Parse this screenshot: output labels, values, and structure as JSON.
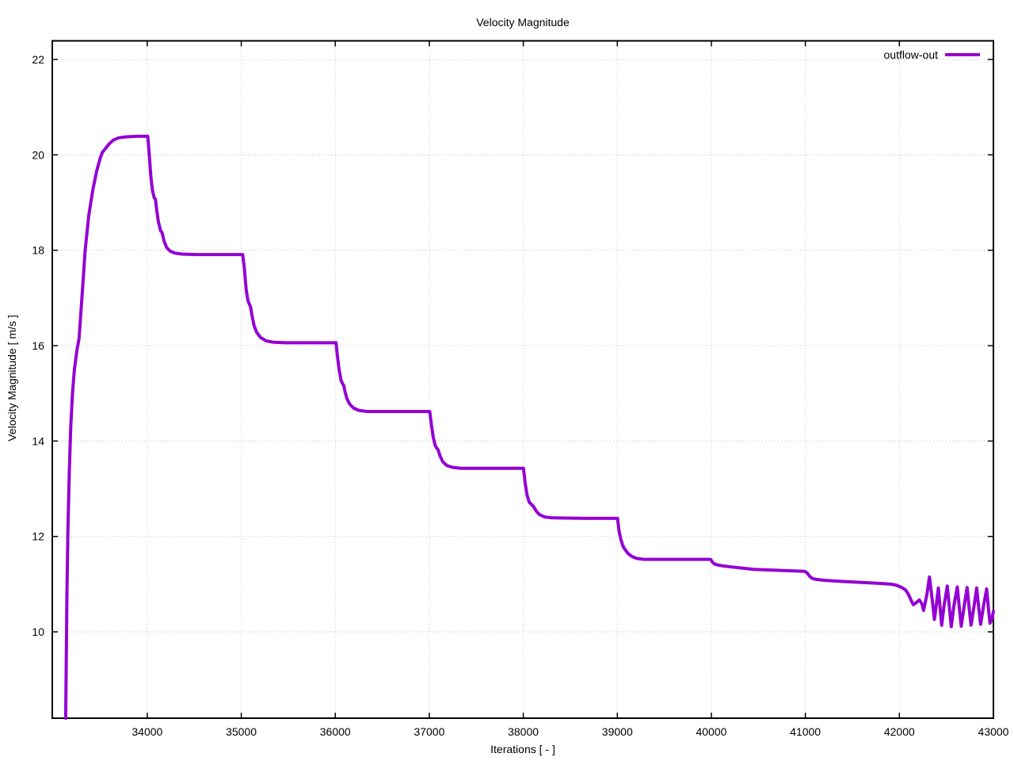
{
  "chart_data": {
    "type": "line",
    "title": "Velocity Magnitude",
    "xlabel": "Iterations [ - ]",
    "ylabel": "Velocity Magnitude [ m/s ]",
    "xlim": [
      32990,
      43000
    ],
    "ylim": [
      8.19,
      22.39
    ],
    "xticks": [
      34000,
      35000,
      36000,
      37000,
      38000,
      39000,
      40000,
      41000,
      42000,
      43000
    ],
    "yticks": [
      10,
      12,
      14,
      16,
      18,
      20,
      22
    ],
    "grid": true,
    "grid_style": "dotted",
    "grid_color": "#bdbdbd",
    "border_color": "#000000",
    "background_color": "#ffffff",
    "legend_position": "top-right-inside",
    "series": [
      {
        "name": "outflow-out",
        "color": "#9400d3",
        "points": [
          [
            33132,
            8.19
          ],
          [
            33138,
            9.3
          ],
          [
            33146,
            10.8
          ],
          [
            33156,
            12.1
          ],
          [
            33170,
            13.3
          ],
          [
            33186,
            14.3
          ],
          [
            33205,
            15.0
          ],
          [
            33225,
            15.5
          ],
          [
            33252,
            15.9
          ],
          [
            33275,
            16.15
          ],
          [
            33305,
            17.0
          ],
          [
            33340,
            18.0
          ],
          [
            33378,
            18.72
          ],
          [
            33420,
            19.25
          ],
          [
            33462,
            19.66
          ],
          [
            33500,
            19.93
          ],
          [
            33522,
            20.05
          ],
          [
            33550,
            20.12
          ],
          [
            33590,
            20.22
          ],
          [
            33640,
            20.31
          ],
          [
            33700,
            20.36
          ],
          [
            33790,
            20.38
          ],
          [
            33900,
            20.39
          ],
          [
            34005,
            20.39
          ],
          [
            34018,
            20.1
          ],
          [
            34038,
            19.55
          ],
          [
            34056,
            19.25
          ],
          [
            34066,
            19.17
          ],
          [
            34074,
            19.1
          ],
          [
            34088,
            19.07
          ],
          [
            34098,
            18.88
          ],
          [
            34118,
            18.6
          ],
          [
            34142,
            18.41
          ],
          [
            34158,
            18.37
          ],
          [
            34178,
            18.2
          ],
          [
            34205,
            18.06
          ],
          [
            34245,
            17.98
          ],
          [
            34295,
            17.94
          ],
          [
            34365,
            17.92
          ],
          [
            34520,
            17.91
          ],
          [
            34800,
            17.91
          ],
          [
            35015,
            17.91
          ],
          [
            35032,
            17.65
          ],
          [
            35052,
            17.18
          ],
          [
            35070,
            16.95
          ],
          [
            35084,
            16.88
          ],
          [
            35098,
            16.82
          ],
          [
            35114,
            16.63
          ],
          [
            35138,
            16.41
          ],
          [
            35164,
            16.28
          ],
          [
            35205,
            16.17
          ],
          [
            35265,
            16.1
          ],
          [
            35345,
            16.07
          ],
          [
            35470,
            16.06
          ],
          [
            35750,
            16.06
          ],
          [
            36008,
            16.06
          ],
          [
            36022,
            15.8
          ],
          [
            36042,
            15.48
          ],
          [
            36062,
            15.27
          ],
          [
            36078,
            15.2
          ],
          [
            36092,
            15.16
          ],
          [
            36104,
            15.03
          ],
          [
            36124,
            14.89
          ],
          [
            36155,
            14.77
          ],
          [
            36195,
            14.69
          ],
          [
            36255,
            14.64
          ],
          [
            36345,
            14.62
          ],
          [
            36650,
            14.62
          ],
          [
            37005,
            14.62
          ],
          [
            37022,
            14.35
          ],
          [
            37042,
            14.08
          ],
          [
            37062,
            13.91
          ],
          [
            37080,
            13.85
          ],
          [
            37095,
            13.81
          ],
          [
            37112,
            13.7
          ],
          [
            37142,
            13.57
          ],
          [
            37185,
            13.49
          ],
          [
            37245,
            13.45
          ],
          [
            37335,
            13.43
          ],
          [
            37650,
            13.43
          ],
          [
            38002,
            13.43
          ],
          [
            38018,
            13.15
          ],
          [
            38038,
            12.88
          ],
          [
            38062,
            12.72
          ],
          [
            38088,
            12.67
          ],
          [
            38108,
            12.63
          ],
          [
            38134,
            12.54
          ],
          [
            38170,
            12.46
          ],
          [
            38225,
            12.41
          ],
          [
            38310,
            12.39
          ],
          [
            38650,
            12.38
          ],
          [
            39002,
            12.38
          ],
          [
            39018,
            12.12
          ],
          [
            39038,
            11.93
          ],
          [
            39062,
            11.79
          ],
          [
            39088,
            11.71
          ],
          [
            39115,
            11.64
          ],
          [
            39155,
            11.58
          ],
          [
            39205,
            11.54
          ],
          [
            39280,
            11.52
          ],
          [
            39650,
            11.52
          ],
          [
            39992,
            11.52
          ],
          [
            40012,
            11.46
          ],
          [
            40035,
            11.42
          ],
          [
            40070,
            11.4
          ],
          [
            40130,
            11.38
          ],
          [
            40260,
            11.35
          ],
          [
            40450,
            11.31
          ],
          [
            40720,
            11.29
          ],
          [
            40995,
            11.27
          ],
          [
            41022,
            11.23
          ],
          [
            41048,
            11.16
          ],
          [
            41075,
            11.12
          ],
          [
            41115,
            11.1
          ],
          [
            41210,
            11.08
          ],
          [
            41360,
            11.06
          ],
          [
            41560,
            11.04
          ],
          [
            41760,
            11.02
          ],
          [
            41910,
            11.0
          ],
          [
            41965,
            10.98
          ],
          [
            42025,
            10.93
          ],
          [
            42065,
            10.88
          ],
          [
            42095,
            10.79
          ],
          [
            42125,
            10.66
          ],
          [
            42148,
            10.57
          ],
          [
            42178,
            10.61
          ],
          [
            42212,
            10.67
          ],
          [
            42238,
            10.59
          ],
          [
            42258,
            10.45
          ],
          [
            42292,
            10.78
          ],
          [
            42320,
            11.15
          ],
          [
            42348,
            10.7
          ],
          [
            42372,
            10.26
          ],
          [
            42395,
            10.6
          ],
          [
            42414,
            10.92
          ],
          [
            42432,
            10.52
          ],
          [
            42450,
            10.14
          ],
          [
            42475,
            10.55
          ],
          [
            42510,
            10.96
          ],
          [
            42532,
            10.5
          ],
          [
            42552,
            10.11
          ],
          [
            42580,
            10.55
          ],
          [
            42616,
            10.94
          ],
          [
            42638,
            10.5
          ],
          [
            42658,
            10.12
          ],
          [
            42690,
            10.55
          ],
          [
            42720,
            10.93
          ],
          [
            42742,
            10.5
          ],
          [
            42762,
            10.14
          ],
          [
            42795,
            10.55
          ],
          [
            42822,
            10.92
          ],
          [
            42844,
            10.5
          ],
          [
            42864,
            10.16
          ],
          [
            42898,
            10.58
          ],
          [
            42928,
            10.9
          ],
          [
            42947,
            10.5
          ],
          [
            42964,
            10.18
          ],
          [
            42986,
            10.28
          ],
          [
            43000,
            10.43
          ]
        ]
      }
    ]
  }
}
